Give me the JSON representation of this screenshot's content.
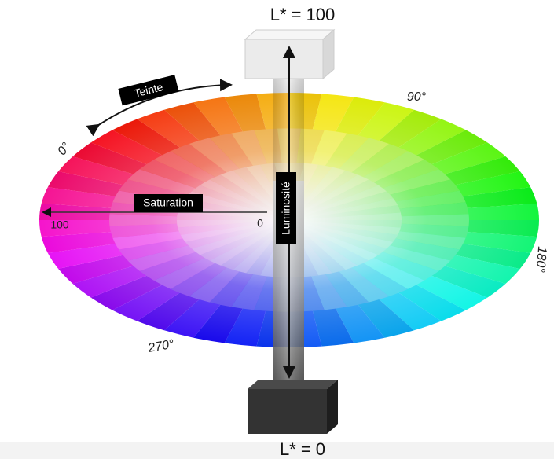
{
  "top_label": "L* = 100",
  "bottom_label": "L* = 0",
  "hue_label": "Teinte",
  "saturation_label": "Saturation",
  "lightness_label": "Luminosité",
  "hue_angles": [
    "0°",
    "90°",
    "180°",
    "270°"
  ],
  "saturation_ends": [
    "100",
    "0"
  ]
}
